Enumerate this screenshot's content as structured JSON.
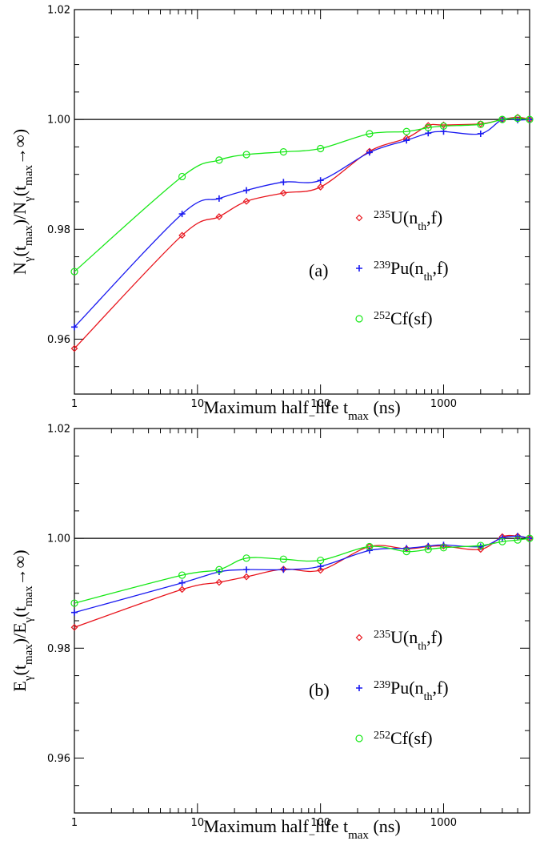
{
  "chart_data": [
    {
      "type": "line",
      "panel_label": "(a)",
      "xlabel": [
        "Maximum half",
        "−",
        "life t",
        "max",
        " (ns)"
      ],
      "ylabel": [
        "N",
        "γ",
        "(t",
        "max",
        ")/N",
        "γ",
        "(t",
        "max",
        "→∞)"
      ],
      "x_scale": "log",
      "xlim": [
        1,
        5000
      ],
      "ylim": [
        0.95,
        1.02
      ],
      "x_ticks": [
        1,
        10,
        100,
        1000
      ],
      "x_tick_labels": [
        "1",
        "10",
        "100",
        "1000"
      ],
      "y_ticks": [
        0.96,
        0.98,
        1.0,
        1.02
      ],
      "y_tick_labels": [
        "0.96",
        "0.98",
        "1.00",
        "1.02"
      ],
      "reference_line": 1.0,
      "legend_position": "right-middle",
      "series": [
        {
          "name": "235U(nth,f)",
          "color": "#e8141c",
          "marker": "diamond",
          "x": [
            1,
            7.5,
            15,
            25,
            50,
            100,
            250,
            500,
            750,
            1000,
            2000,
            3000,
            4000,
            5000
          ],
          "y": [
            0.9583,
            0.9789,
            0.9823,
            0.9851,
            0.9866,
            0.9877,
            0.9942,
            0.9966,
            0.9989,
            0.999,
            0.9992,
            1.0,
            1.0004,
            1.0
          ]
        },
        {
          "name": "239Pu(nth,f)",
          "color": "#1a1af0",
          "marker": "plus",
          "x": [
            1,
            7.5,
            15,
            25,
            50,
            100,
            250,
            500,
            750,
            1000,
            2000,
            3000,
            4000,
            5000
          ],
          "y": [
            0.9622,
            0.9828,
            0.9856,
            0.9871,
            0.9886,
            0.9889,
            0.994,
            0.9962,
            0.9975,
            0.9978,
            0.9974,
            1.0,
            0.9999,
            1.0
          ]
        },
        {
          "name": "252Cf(sf)",
          "color": "#18e818",
          "marker": "circle",
          "x": [
            1,
            7.5,
            15,
            25,
            50,
            100,
            250,
            500,
            750,
            1000,
            2000,
            3000,
            4000,
            5000
          ],
          "y": [
            0.9723,
            0.9896,
            0.9926,
            0.9936,
            0.9941,
            0.9947,
            0.9974,
            0.9978,
            0.9985,
            0.9988,
            0.9991,
            1.0,
            1.0002,
            1.0
          ]
        }
      ],
      "legend": [
        {
          "sup": "235",
          "main": "U(n",
          "sub": "th",
          "tail": ",f)"
        },
        {
          "sup": "239",
          "main": "Pu(n",
          "sub": "th",
          "tail": ",f)"
        },
        {
          "sup": "252",
          "main": "Cf(sf)",
          "sub": "",
          "tail": ""
        }
      ]
    },
    {
      "type": "line",
      "panel_label": "(b)",
      "xlabel": [
        "Maximum half",
        "−",
        "life t",
        "max",
        " (ns)"
      ],
      "ylabel": [
        "E",
        "γ",
        "(t",
        "max",
        ")/E",
        "γ",
        "(t",
        "max",
        "→∞)"
      ],
      "x_scale": "log",
      "xlim": [
        1,
        5000
      ],
      "ylim": [
        0.95,
        1.02
      ],
      "x_ticks": [
        1,
        10,
        100,
        1000
      ],
      "x_tick_labels": [
        "1",
        "10",
        "100",
        "1000"
      ],
      "y_ticks": [
        0.96,
        0.98,
        1.0,
        1.02
      ],
      "y_tick_labels": [
        "0.96",
        "0.98",
        "1.00",
        "1.02"
      ],
      "reference_line": 1.0,
      "legend_position": "right-lower",
      "series": [
        {
          "name": "235U(nth,f)",
          "color": "#e8141c",
          "marker": "diamond",
          "x": [
            1,
            7.5,
            15,
            25,
            50,
            100,
            250,
            500,
            750,
            1000,
            2000,
            3000,
            4000,
            5000
          ],
          "y": [
            0.9838,
            0.9907,
            0.992,
            0.993,
            0.9944,
            0.9942,
            0.9985,
            0.9981,
            0.9985,
            0.9986,
            0.998,
            1.0003,
            1.0004,
            1.0
          ]
        },
        {
          "name": "239Pu(nth,f)",
          "color": "#1a1af0",
          "marker": "plus",
          "x": [
            1,
            7.5,
            15,
            25,
            50,
            100,
            250,
            500,
            750,
            1000,
            2000,
            3000,
            4000,
            5000
          ],
          "y": [
            0.9865,
            0.9919,
            0.9939,
            0.9943,
            0.9943,
            0.9949,
            0.9978,
            0.9982,
            0.9986,
            0.9988,
            0.9985,
            1.0001,
            1.0004,
            1.0
          ]
        },
        {
          "name": "252Cf(sf)",
          "color": "#18e818",
          "marker": "circle",
          "x": [
            1,
            7.5,
            15,
            25,
            50,
            100,
            250,
            500,
            750,
            1000,
            2000,
            3000,
            4000,
            5000
          ],
          "y": [
            0.9882,
            0.9933,
            0.9943,
            0.9964,
            0.9962,
            0.996,
            0.9985,
            0.9976,
            0.998,
            0.9983,
            0.9987,
            0.9994,
            0.9997,
            1.0
          ]
        }
      ],
      "legend": [
        {
          "sup": "235",
          "main": "U(n",
          "sub": "th",
          "tail": ",f)"
        },
        {
          "sup": "239",
          "main": "Pu(n",
          "sub": "th",
          "tail": ",f)"
        },
        {
          "sup": "252",
          "main": "Cf(sf)",
          "sub": "",
          "tail": ""
        }
      ]
    }
  ]
}
